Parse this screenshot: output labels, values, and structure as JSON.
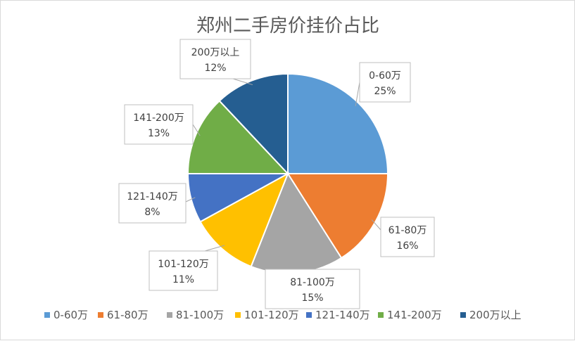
{
  "chart_data": {
    "type": "pie",
    "title": "郑州二手房价挂价占比",
    "categories": [
      "0-60万",
      "61-80万",
      "81-100万",
      "101-120万",
      "121-140万",
      "141-200万",
      "200万以上"
    ],
    "values": [
      25,
      16,
      15,
      11,
      8,
      13,
      12
    ],
    "value_labels": [
      "25%",
      "16%",
      "15%",
      "11%",
      "8%",
      "13%",
      "12%"
    ],
    "colors": [
      "#5b9bd5",
      "#ed7d31",
      "#a5a5a5",
      "#ffc000",
      "#4472c4",
      "#70ad47",
      "#255e91"
    ],
    "legend_position": "bottom",
    "start_angle": "12 o'clock",
    "direction": "clockwise"
  }
}
